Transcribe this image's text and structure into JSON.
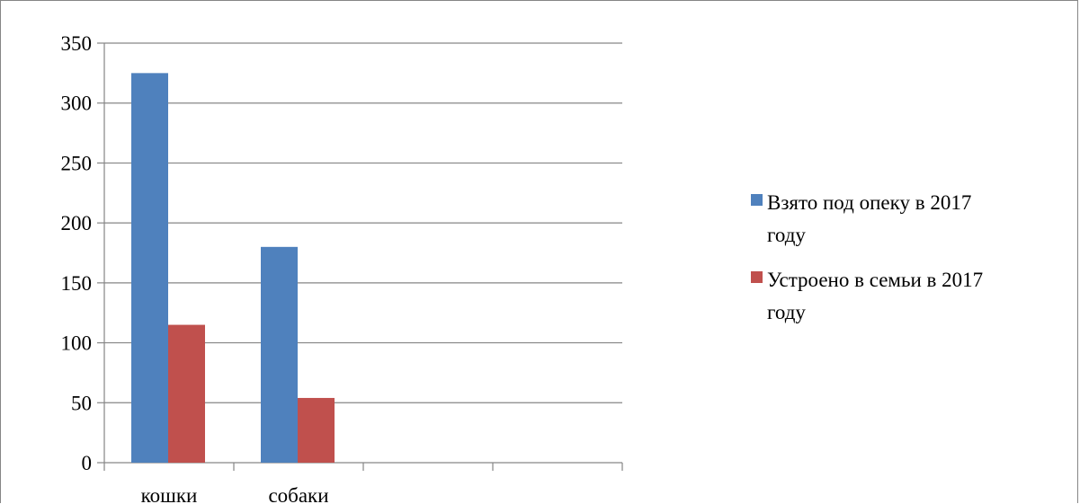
{
  "chart_data": {
    "type": "bar",
    "categories": [
      "кошки",
      "собаки",
      "",
      ""
    ],
    "series": [
      {
        "name": "Взято под опеку в 2017 году",
        "values": [
          325,
          180,
          null,
          null
        ],
        "color": "#4F81BD"
      },
      {
        "name": "Устроено в семьи в 2017 году",
        "values": [
          115,
          54,
          null,
          null
        ],
        "color": "#C0504D"
      }
    ],
    "legend_lines": [
      [
        "Взято под опеку в 2017",
        "году"
      ],
      [
        "Устроено в семьи в 2017",
        "году"
      ]
    ],
    "ylim": [
      0,
      350
    ],
    "yticks": [
      "0",
      "50",
      "100",
      "150",
      "200",
      "250",
      "300",
      "350"
    ],
    "grid": true,
    "legend_position": "right",
    "title": "",
    "xlabel": "",
    "ylabel": ""
  }
}
